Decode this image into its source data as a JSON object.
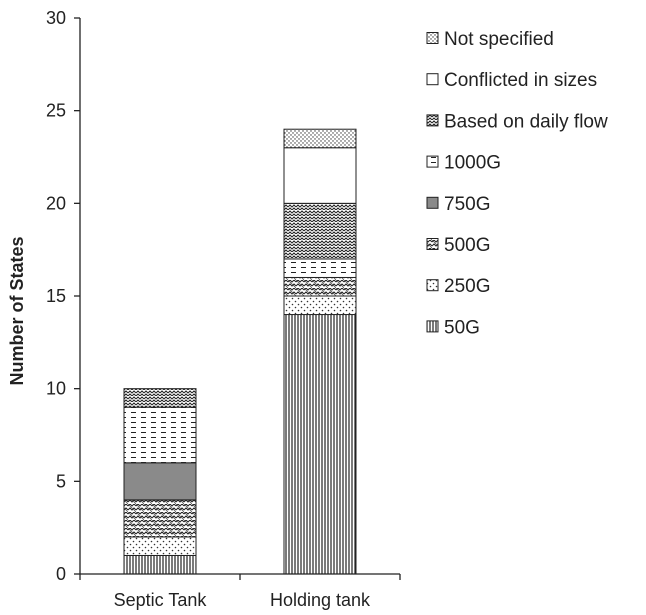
{
  "chart_data": {
    "type": "bar",
    "stacked": true,
    "categories": [
      "Septic Tank",
      "Holding tank"
    ],
    "ylabel": "Number of States",
    "xlabel": "",
    "ylim": [
      0,
      30
    ],
    "yticks": [
      0,
      5,
      10,
      15,
      20,
      25,
      30
    ],
    "grid": false,
    "legend_position": "top-right",
    "series": [
      {
        "name": "50G",
        "values": [
          1,
          14
        ],
        "pattern": "vlines"
      },
      {
        "name": "250G",
        "values": [
          1,
          1
        ],
        "pattern": "dots"
      },
      {
        "name": "500G",
        "values": [
          2,
          1
        ],
        "pattern": "zigzag"
      },
      {
        "name": "750G",
        "values": [
          2,
          0
        ],
        "pattern": "solid-gray"
      },
      {
        "name": "1000G",
        "values": [
          3,
          1
        ],
        "pattern": "dashes"
      },
      {
        "name": "Based on daily flow",
        "values": [
          1,
          3
        ],
        "pattern": "waves"
      },
      {
        "name": "Conflicted in sizes",
        "values": [
          0,
          3
        ],
        "pattern": "blank"
      },
      {
        "name": "Not specified",
        "values": [
          0,
          1
        ],
        "pattern": "fine-dots"
      }
    ]
  }
}
